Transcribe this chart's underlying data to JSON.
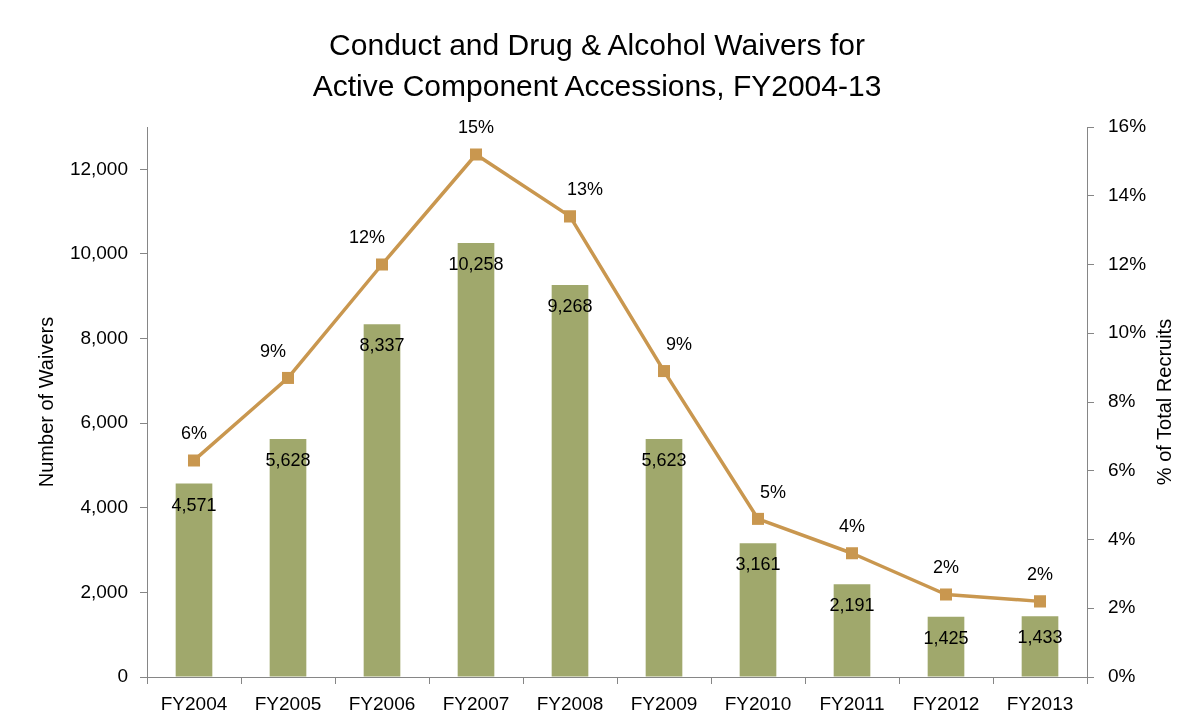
{
  "chart_data": {
    "type": "bar",
    "title": "Conduct and Drug & Alcohol Waivers for Active Component Accessions, FY2004-13",
    "ylabel": "Number of Waivers",
    "y2label": "% of Total Recruits",
    "categories": [
      "FY2004",
      "FY2005",
      "FY2006",
      "FY2007",
      "FY2008",
      "FY2009",
      "FY2010",
      "FY2011",
      "FY2012",
      "FY2013"
    ],
    "series": [
      {
        "color": "#a0a86c",
        "values": [
          4571,
          5628,
          8337,
          10258,
          9268,
          5623,
          3161,
          2191,
          1425,
          1433
        ],
        "value_labels": [
          "4,571",
          "5,628",
          "8,337",
          "10,258",
          "9,268",
          "5,623",
          "3,161",
          "2,191",
          "1,425",
          "1,433"
        ]
      },
      {
        "type": "line",
        "axis": "y2",
        "color": "#c9974f",
        "values": [
          6.3,
          8.7,
          12.0,
          15.2,
          13.4,
          8.9,
          4.6,
          3.6,
          2.4,
          2.2
        ],
        "value_labels": [
          "6%",
          "9%",
          "12%",
          "15%",
          "13%",
          "9%",
          "5%",
          "4%",
          "2%",
          "2%"
        ]
      }
    ],
    "ylim": [
      0,
      13000
    ],
    "yticks": [
      0,
      {
        "value": 2000,
        "label": "2,000"
      },
      {
        "value": 4000,
        "label": "4,000"
      },
      {
        "value": 6000,
        "label": "6,000"
      },
      {
        "value": 8000,
        "label": "8,000"
      },
      {
        "value": 10000,
        "label": "10,000"
      },
      {
        "value": 12000,
        "label": "12,000"
      }
    ],
    "y2lim": [
      0,
      16
    ],
    "y2ticks": [
      {
        "value": 0,
        "label": "0%"
      },
      {
        "value": 2,
        "label": "2%"
      },
      {
        "value": 4,
        "label": "4%"
      },
      {
        "value": 6,
        "label": "6%"
      },
      {
        "value": 8,
        "label": "8%"
      },
      {
        "value": 10,
        "label": "10%"
      },
      {
        "value": 12,
        "label": "12%"
      },
      {
        "value": 14,
        "label": "14%"
      },
      {
        "value": 16,
        "label": "16%"
      }
    ],
    "grid": false,
    "legend": false,
    "marker": "square",
    "line_style": "solid"
  }
}
